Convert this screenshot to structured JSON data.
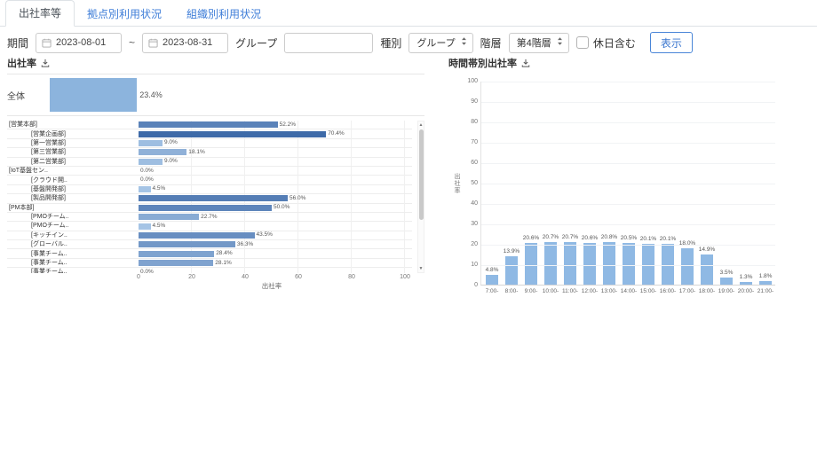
{
  "tabs": [
    {
      "label": "出社率等",
      "active": true
    },
    {
      "label": "拠点別利用状況",
      "active": false
    },
    {
      "label": "組織別利用状況",
      "active": false
    }
  ],
  "filters": {
    "period_label": "期間",
    "date_from": "2023-08-01",
    "date_separator": "~",
    "date_to": "2023-08-31",
    "group_label": "グループ",
    "group_value": "",
    "type_label": "種別",
    "type_value": "グループ",
    "level_label": "階層",
    "level_value": "第4階層",
    "holiday_label": "休日含む",
    "holiday_checked": false,
    "show_button": "表示"
  },
  "chart_data": [
    {
      "type": "bar",
      "orientation": "horizontal",
      "title": "出社率",
      "xlabel": "出社率",
      "xlim": [
        0,
        100
      ],
      "xticks": [
        0,
        20,
        40,
        60,
        80,
        100
      ],
      "grid": true,
      "overall": {
        "label": "全体",
        "value": 23.4,
        "unit": "%"
      },
      "rows": [
        {
          "label": "[営業本部]",
          "level": 0,
          "value": 52.2
        },
        {
          "label": "[営業企画部]",
          "level": 1,
          "value": 70.4
        },
        {
          "label": "[第一営業部]",
          "level": 1,
          "value": 9.0
        },
        {
          "label": "[第三営業部]",
          "level": 1,
          "value": 18.1
        },
        {
          "label": "[第二営業部]",
          "level": 1,
          "value": 9.0
        },
        {
          "label": "[IoT基盤セン..",
          "level": 0,
          "value": 0.0
        },
        {
          "label": "[クラウド開..",
          "level": 1,
          "value": 0.0
        },
        {
          "label": "[基盤開発部]",
          "level": 1,
          "value": 4.5
        },
        {
          "label": "[製品開発部]",
          "level": 1,
          "value": 56.0
        },
        {
          "label": "[PM本部]",
          "level": 0,
          "value": 50.0
        },
        {
          "label": "[PMOチーム..",
          "level": 1,
          "value": 22.7
        },
        {
          "label": "[PMOチーム..",
          "level": 1,
          "value": 4.5
        },
        {
          "label": "[キッチイン..",
          "level": 1,
          "value": 43.5
        },
        {
          "label": "[グローバル..",
          "level": 1,
          "value": 36.3
        },
        {
          "label": "[事業チーム..",
          "level": 1,
          "value": 28.4
        },
        {
          "label": "[事業チーム..",
          "level": 1,
          "value": 28.1
        },
        {
          "label": "[事業チーム..",
          "level": 1,
          "value": 0.0
        }
      ],
      "bar_color_low": "#accae9",
      "bar_color_high": "#3e6aa8",
      "overall_bar_color": "#8cb4dd"
    },
    {
      "type": "bar",
      "title": "時間帯別出社率",
      "ylabel": "出社率",
      "ylim": [
        0,
        100
      ],
      "yticks": [
        0,
        10,
        20,
        30,
        40,
        50,
        60,
        70,
        80,
        90,
        100
      ],
      "grid": true,
      "categories": [
        "7:00-",
        "8:00-",
        "9:00-",
        "10:00-",
        "11:00-",
        "12:00-",
        "13:00-",
        "14:00-",
        "15:00-",
        "16:00-",
        "17:00-",
        "18:00-",
        "19:00-",
        "20:00-",
        "21:00-"
      ],
      "values": [
        4.8,
        13.9,
        20.6,
        20.7,
        20.7,
        20.6,
        20.8,
        20.5,
        20.1,
        20.1,
        18.0,
        14.9,
        3.5,
        1.3,
        1.8
      ],
      "bar_color": "#8fb9e4"
    }
  ],
  "colors": {
    "accent_blue": "#3f7ed8",
    "link_blue": "#3f7ed8"
  }
}
